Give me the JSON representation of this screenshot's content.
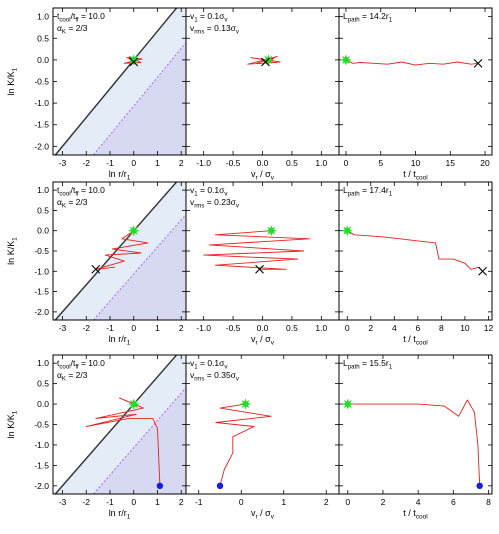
{
  "figure": {
    "ylabel_main": "ln K/K",
    "ylabel_sub": "1",
    "row_labels": {
      "p1_x_main": "ln r/r",
      "p1_x_sub": "1",
      "p2_x_main": "v",
      "p2_x_sub1": "r",
      "p2_x_mid": " / σ",
      "p2_x_sub2": "v",
      "p3_x_main": "t / t",
      "p3_x_sub": "cool"
    },
    "yticks": [
      "1.0",
      "0.5",
      "0.0",
      "-0.5",
      "-1.0",
      "-1.5",
      "-2.0"
    ],
    "p1_xticks": [
      "-3",
      "-2",
      "-1",
      "0",
      "1",
      "2"
    ],
    "p2_xticks": [
      "-1.0",
      "-0.5",
      "0.0",
      "0.5",
      "1.0"
    ],
    "p2_xticks_wide": [
      "-1",
      "0",
      "1",
      "2"
    ],
    "p3_xticks_top": [
      "0",
      "5",
      "10",
      "15",
      "20"
    ],
    "p3_xticks_mid": [
      "0",
      "2",
      "4",
      "6",
      "8",
      "10",
      "12"
    ],
    "p3_xticks_bot": [
      "0",
      "2",
      "4",
      "6",
      "8"
    ]
  },
  "rows": [
    {
      "ann_p1": {
        "l1": "t",
        "l1s": "cool",
        "l1m": "/t",
        "l1s2": "ff",
        "l1v": " = 10.0",
        "l2": "α",
        "l2s": "K",
        "l2v": " = 2/3"
      },
      "ann_p2": {
        "l1": "v",
        "l1s": "1",
        "l1v": " = 0.1σ",
        "l1s2": "v",
        "l2": "v",
        "l2s": "rms",
        "l2v": " = 0.13σ",
        "l2s2": "v"
      },
      "ann_p3": {
        "l1": "L",
        "l1s": "path",
        "l1v": " = 14.2r",
        "l1s2": "1"
      }
    },
    {
      "ann_p1": {
        "l1": "t",
        "l1s": "cool",
        "l1m": "/t",
        "l1s2": "ff",
        "l1v": " = 10.0",
        "l2": "α",
        "l2s": "K",
        "l2v": " = 2/3"
      },
      "ann_p2": {
        "l1": "v",
        "l1s": "1",
        "l1v": " = 0.1σ",
        "l1s2": "v",
        "l2": "v",
        "l2s": "rms",
        "l2v": " = 0.23σ",
        "l2s2": "v"
      },
      "ann_p3": {
        "l1": "L",
        "l1s": "path",
        "l1v": " = 17.4r",
        "l1s2": "1"
      }
    },
    {
      "ann_p1": {
        "l1": "t",
        "l1s": "cool",
        "l1m": "/t",
        "l1s2": "ff",
        "l1v": " = 10.0",
        "l2": "α",
        "l2s": "K",
        "l2v": " = 2/3"
      },
      "ann_p2": {
        "l1": "v",
        "l1s": "1",
        "l1v": " = 0.1σ",
        "l1s2": "v",
        "l2": "v",
        "l2s": "rms",
        "l2v": " = 0.35σ",
        "l2s2": "v"
      },
      "ann_p3": {
        "l1": "L",
        "l1s": "path",
        "l1v": " = 15.5r",
        "l1s2": "1"
      }
    }
  ],
  "colors": {
    "trajectory": "#e8201c",
    "start": "#22dd22",
    "end_x": "#000000",
    "dot": "#1020e0",
    "shade_light": "#e4ecf8",
    "shade_dark": "#d7d9f2",
    "dashed": "#a86be6",
    "diag": "#333333"
  },
  "chart_data": [
    {
      "type": "line",
      "panel": "row1-radius",
      "xlim": [
        -3.4,
        2.2
      ],
      "ylim": [
        -2.2,
        1.2
      ],
      "series": [
        {
          "values": [
            [
              0,
              0
            ],
            [
              -0.3,
              0.05
            ],
            [
              0.35,
              0.02
            ],
            [
              -0.4,
              -0.08
            ],
            [
              0.3,
              -0.06
            ],
            [
              -0.2,
              0.07
            ],
            [
              0.1,
              0.03
            ],
            [
              0,
              -0.1
            ],
            [
              -0.1,
              0.05
            ],
            [
              0.1,
              0
            ]
          ]
        }
      ],
      "start": [
        0,
        0
      ],
      "end_x": [
        0.0,
        -0.05
      ]
    },
    {
      "type": "line",
      "panel": "row1-velocity",
      "xlim": [
        -1.3,
        1.3
      ],
      "ylim": [
        -2.2,
        1.2
      ],
      "series": [
        {
          "values": [
            [
              0.1,
              0
            ],
            [
              -0.2,
              0.05
            ],
            [
              0.3,
              -0.05
            ],
            [
              -0.25,
              -0.1
            ],
            [
              0.25,
              0.08
            ],
            [
              -0.1,
              -0.08
            ],
            [
              0.2,
              0.05
            ],
            [
              0.1,
              -0.05
            ]
          ]
        }
      ],
      "start": [
        0.1,
        0
      ],
      "end_x": [
        0.05,
        -0.05
      ]
    },
    {
      "type": "line",
      "panel": "row1-time",
      "xlim": [
        -1,
        21
      ],
      "ylim": [
        -2.2,
        1.2
      ],
      "series": [
        {
          "values": [
            [
              0,
              0
            ],
            [
              1,
              -0.08
            ],
            [
              2,
              -0.06
            ],
            [
              4,
              -0.08
            ],
            [
              6,
              -0.1
            ],
            [
              8,
              -0.05
            ],
            [
              10,
              -0.12
            ],
            [
              12,
              -0.08
            ],
            [
              14,
              -0.1
            ],
            [
              16,
              -0.05
            ],
            [
              18,
              -0.1
            ],
            [
              19,
              -0.08
            ]
          ]
        }
      ],
      "start": [
        0,
        0
      ],
      "end_x": [
        19,
        -0.08
      ]
    },
    {
      "type": "line",
      "panel": "row2-radius",
      "xlim": [
        -3.4,
        2.2
      ],
      "ylim": [
        -2.2,
        1.2
      ],
      "series": [
        {
          "values": [
            [
              0,
              0
            ],
            [
              -0.5,
              -0.2
            ],
            [
              0.6,
              -0.3
            ],
            [
              -0.9,
              -0.45
            ],
            [
              0.3,
              -0.55
            ],
            [
              -1.2,
              -0.6
            ],
            [
              -0.4,
              -0.75
            ],
            [
              -1.6,
              -0.95
            ],
            [
              -0.8,
              -0.9
            ],
            [
              -1.6,
              -0.95
            ]
          ]
        }
      ],
      "start": [
        0,
        0
      ],
      "end_x": [
        -1.6,
        -0.95
      ]
    },
    {
      "type": "line",
      "panel": "row2-velocity",
      "xlim": [
        -1.3,
        1.3
      ],
      "ylim": [
        -2.2,
        1.2
      ],
      "series": [
        {
          "values": [
            [
              0.15,
              0
            ],
            [
              -0.8,
              -0.1
            ],
            [
              0.8,
              -0.2
            ],
            [
              -0.9,
              -0.35
            ],
            [
              0.7,
              -0.5
            ],
            [
              -1.0,
              -0.6
            ],
            [
              0.6,
              -0.7
            ],
            [
              -0.8,
              -0.85
            ],
            [
              0.4,
              -0.95
            ],
            [
              -0.05,
              -0.95
            ]
          ]
        }
      ],
      "start": [
        0.15,
        0
      ],
      "end_x": [
        -0.05,
        -0.95
      ]
    },
    {
      "type": "line",
      "panel": "row2-time",
      "xlim": [
        -0.7,
        12.3
      ],
      "ylim": [
        -2.2,
        1.2
      ],
      "series": [
        {
          "values": [
            [
              0,
              0
            ],
            [
              0.6,
              -0.1
            ],
            [
              1.5,
              -0.12
            ],
            [
              3,
              -0.15
            ],
            [
              4.5,
              -0.2
            ],
            [
              6,
              -0.25
            ],
            [
              7.5,
              -0.3
            ],
            [
              7.8,
              -0.7
            ],
            [
              9,
              -0.7
            ],
            [
              10,
              -0.8
            ],
            [
              10.5,
              -0.95
            ],
            [
              11.2,
              -0.9
            ],
            [
              11.5,
              -1.0
            ]
          ]
        }
      ],
      "start": [
        0,
        0
      ],
      "end_x": [
        11.5,
        -1.0
      ]
    },
    {
      "type": "line",
      "panel": "row3-radius",
      "xlim": [
        -3.4,
        2.2
      ],
      "ylim": [
        -2.2,
        1.2
      ],
      "series": [
        {
          "values": [
            [
              0,
              0
            ],
            [
              -0.6,
              0.15
            ],
            [
              0.4,
              -0.1
            ],
            [
              -1.6,
              -0.35
            ],
            [
              0.1,
              -0.25
            ],
            [
              -2.0,
              -0.55
            ],
            [
              -0.2,
              -0.35
            ],
            [
              0.8,
              -0.35
            ],
            [
              1.0,
              -0.6
            ],
            [
              1.1,
              -2.0
            ]
          ]
        }
      ],
      "start": [
        0,
        0
      ],
      "end_point": [
        1.1,
        -2.0
      ]
    },
    {
      "type": "line",
      "panel": "row3-velocity",
      "xlim": [
        -1.3,
        2.3
      ],
      "ylim": [
        -2.2,
        1.2
      ],
      "series": [
        {
          "values": [
            [
              0.1,
              0
            ],
            [
              -0.5,
              -0.1
            ],
            [
              0.7,
              -0.3
            ],
            [
              -0.6,
              -0.45
            ],
            [
              0.3,
              -0.55
            ],
            [
              -0.2,
              -0.8
            ],
            [
              -0.2,
              -1.2
            ],
            [
              -0.4,
              -1.6
            ],
            [
              -0.5,
              -2.0
            ]
          ]
        }
      ],
      "start": [
        0.1,
        0
      ],
      "end_point": [
        -0.5,
        -2.0
      ]
    },
    {
      "type": "line",
      "panel": "row3-time",
      "xlim": [
        -0.5,
        8.2
      ],
      "ylim": [
        -2.2,
        1.2
      ],
      "series": [
        {
          "values": [
            [
              0,
              0
            ],
            [
              2,
              0
            ],
            [
              4,
              0
            ],
            [
              5.5,
              -0.05
            ],
            [
              6.3,
              -0.3
            ],
            [
              6.8,
              0.1
            ],
            [
              7.2,
              -0.2
            ],
            [
              7.4,
              -1.0
            ],
            [
              7.5,
              -2.0
            ]
          ]
        }
      ],
      "start": [
        0,
        0
      ],
      "end_point": [
        7.5,
        -2.0
      ]
    }
  ]
}
